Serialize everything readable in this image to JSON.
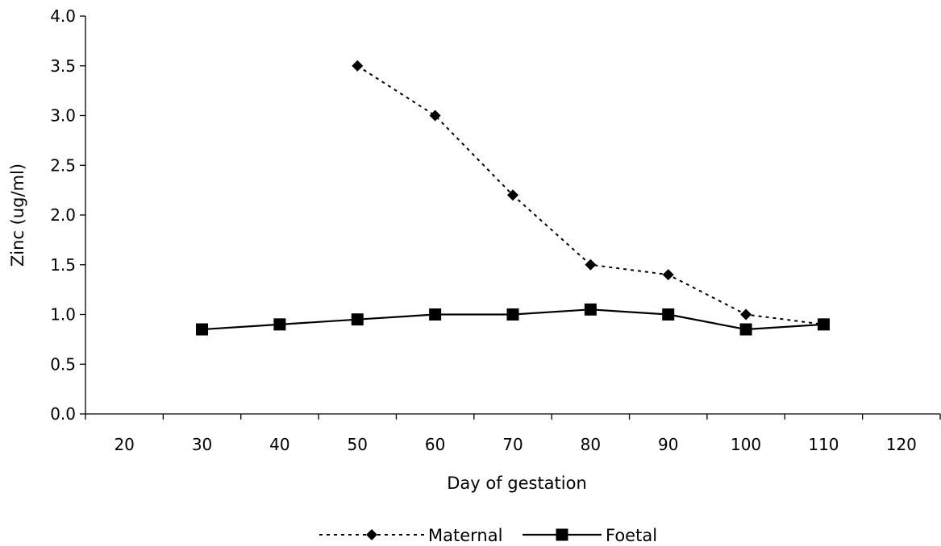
{
  "chart_data": {
    "type": "line",
    "title": "",
    "xlabel": "Day of gestation",
    "ylabel": "Zinc (ug/ml)",
    "xlim": [
      20,
      120
    ],
    "ylim": [
      0,
      4
    ],
    "x_ticks": [
      "20",
      "30",
      "40",
      "50",
      "60",
      "70",
      "80",
      "90",
      "100",
      "110",
      "120"
    ],
    "y_ticks": [
      "0.0",
      "0.5",
      "1.0",
      "1.5",
      "2.0",
      "2.5",
      "3.0",
      "3.5",
      "4.0"
    ],
    "grid": false,
    "legend_position": "bottom",
    "series": [
      {
        "name": "Maternal",
        "marker": "diamond",
        "line_style": "dotted",
        "color": "#000000",
        "x": [
          50,
          60,
          70,
          80,
          90,
          100,
          110
        ],
        "y": [
          3.5,
          3.0,
          2.2,
          1.5,
          1.4,
          1.0,
          0.9
        ]
      },
      {
        "name": "Foetal",
        "marker": "square",
        "line_style": "solid",
        "color": "#000000",
        "x": [
          30,
          40,
          50,
          60,
          70,
          80,
          90,
          100,
          110
        ],
        "y": [
          0.85,
          0.9,
          0.95,
          1.0,
          1.0,
          1.05,
          1.0,
          0.85,
          0.9
        ]
      }
    ]
  }
}
